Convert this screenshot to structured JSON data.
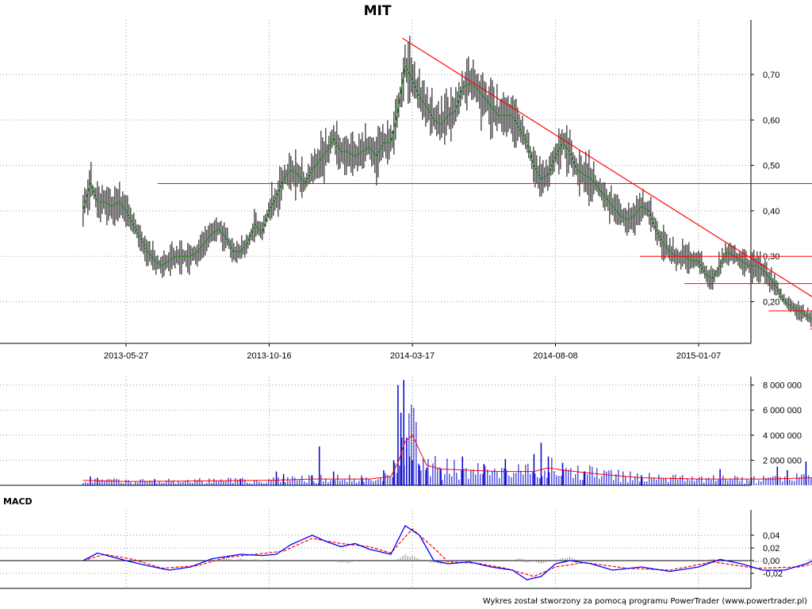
{
  "title": "MIT",
  "footer": "Wykres został stworzony za pomocą programu PowerTrader (www.powertrader.pl)",
  "colors": {
    "price": "#000000",
    "price_ma": "#1a8a1a",
    "trendline": "#ff0000",
    "volume": "#0000cc",
    "volume_ma": "#ff0000",
    "macd": "#0000ff",
    "signal": "#ff0000",
    "histogram": "#8a8a8a",
    "grid": "#9a9a9a"
  },
  "chart_data": [
    {
      "type": "line",
      "panel": "price",
      "title": "MIT",
      "x_tick_labels": [
        "2013-05-27",
        "2013-10-16",
        "2014-03-17",
        "2014-08-08",
        "2015-01-07"
      ],
      "y_tick_labels": [
        "0,70",
        "0,60",
        "0,50",
        "0,40",
        "0,30",
        "0,20"
      ],
      "ylim": [
        0.12,
        0.8
      ],
      "grid": true,
      "series": [
        {
          "values": [
            [
              -0.3,
              0.4
            ],
            [
              -0.25,
              0.46
            ],
            [
              -0.2,
              0.42
            ],
            [
              -0.15,
              0.42
            ],
            [
              -0.1,
              0.41
            ],
            [
              -0.05,
              0.42
            ],
            [
              0.0,
              0.4
            ],
            [
              0.05,
              0.37
            ],
            [
              0.1,
              0.34
            ],
            [
              0.15,
              0.31
            ],
            [
              0.2,
              0.29
            ],
            [
              0.25,
              0.28
            ],
            [
              0.3,
              0.29
            ],
            [
              0.35,
              0.3
            ],
            [
              0.4,
              0.3
            ],
            [
              0.45,
              0.3
            ],
            [
              0.5,
              0.31
            ],
            [
              0.55,
              0.33
            ],
            [
              0.6,
              0.35
            ],
            [
              0.65,
              0.36
            ],
            [
              0.7,
              0.34
            ],
            [
              0.75,
              0.31
            ],
            [
              0.8,
              0.31
            ],
            [
              0.85,
              0.33
            ],
            [
              0.9,
              0.37
            ],
            [
              0.95,
              0.35
            ],
            [
              1.0,
              0.4
            ],
            [
              1.05,
              0.43
            ],
            [
              1.1,
              0.47
            ],
            [
              1.15,
              0.49
            ],
            [
              1.2,
              0.48
            ],
            [
              1.25,
              0.46
            ],
            [
              1.3,
              0.49
            ],
            [
              1.35,
              0.51
            ],
            [
              1.4,
              0.53
            ],
            [
              1.45,
              0.56
            ],
            [
              1.5,
              0.53
            ],
            [
              1.55,
              0.53
            ],
            [
              1.6,
              0.52
            ],
            [
              1.65,
              0.53
            ],
            [
              1.7,
              0.54
            ],
            [
              1.75,
              0.52
            ],
            [
              1.8,
              0.55
            ],
            [
              1.85,
              0.55
            ],
            [
              1.9,
              0.62
            ],
            [
              1.95,
              0.72
            ],
            [
              2.0,
              0.69
            ],
            [
              2.05,
              0.65
            ],
            [
              2.1,
              0.63
            ],
            [
              2.15,
              0.6
            ],
            [
              2.2,
              0.59
            ],
            [
              2.25,
              0.61
            ],
            [
              2.3,
              0.62
            ],
            [
              2.35,
              0.67
            ],
            [
              2.4,
              0.68
            ],
            [
              2.45,
              0.67
            ],
            [
              2.5,
              0.65
            ],
            [
              2.55,
              0.63
            ],
            [
              2.6,
              0.61
            ],
            [
              2.65,
              0.61
            ],
            [
              2.7,
              0.61
            ],
            [
              2.75,
              0.58
            ],
            [
              2.8,
              0.55
            ],
            [
              2.85,
              0.5
            ],
            [
              2.9,
              0.47
            ],
            [
              2.95,
              0.48
            ],
            [
              3.0,
              0.52
            ],
            [
              3.05,
              0.55
            ],
            [
              3.1,
              0.53
            ],
            [
              3.15,
              0.49
            ],
            [
              3.2,
              0.48
            ],
            [
              3.25,
              0.47
            ],
            [
              3.3,
              0.45
            ],
            [
              3.35,
              0.43
            ],
            [
              3.4,
              0.41
            ],
            [
              3.45,
              0.39
            ],
            [
              3.5,
              0.38
            ],
            [
              3.55,
              0.39
            ],
            [
              3.6,
              0.41
            ],
            [
              3.65,
              0.4
            ],
            [
              3.7,
              0.36
            ],
            [
              3.75,
              0.33
            ],
            [
              3.8,
              0.31
            ],
            [
              3.85,
              0.3
            ],
            [
              3.9,
              0.3
            ],
            [
              3.95,
              0.29
            ],
            [
              4.0,
              0.29
            ],
            [
              4.05,
              0.26
            ],
            [
              4.1,
              0.25
            ],
            [
              4.15,
              0.28
            ],
            [
              4.2,
              0.31
            ],
            [
              4.25,
              0.3
            ],
            [
              4.3,
              0.29
            ],
            [
              4.35,
              0.28
            ],
            [
              4.4,
              0.28
            ],
            [
              4.45,
              0.27
            ],
            [
              4.5,
              0.25
            ],
            [
              4.55,
              0.23
            ],
            [
              4.6,
              0.2
            ],
            [
              4.65,
              0.19
            ],
            [
              4.7,
              0.18
            ],
            [
              4.75,
              0.17
            ],
            [
              4.8,
              0.16
            ],
            [
              4.85,
              0.15
            ],
            [
              4.9,
              0.14
            ],
            [
              4.95,
              0.15
            ],
            [
              5.0,
              0.19
            ],
            [
              5.05,
              0.17
            ],
            [
              5.1,
              0.15
            ],
            [
              5.15,
              0.14
            ],
            [
              5.2,
              0.14
            ],
            [
              5.25,
              0.16
            ],
            [
              5.3,
              0.17
            ],
            [
              5.35,
              0.16
            ],
            [
              5.4,
              0.15
            ],
            [
              5.45,
              0.15
            ],
            [
              5.5,
              0.14
            ],
            [
              5.55,
              0.14
            ],
            [
              5.6,
              0.14
            ],
            [
              5.65,
              0.15
            ],
            [
              5.7,
              0.15
            ],
            [
              5.72,
              0.15
            ]
          ]
        }
      ],
      "trendline": {
        "from": [
          1.93,
          0.78
        ],
        "to": [
          5.1,
          0.15
        ]
      },
      "support_lines": [
        {
          "y": 0.46,
          "x_from": 0.22,
          "x_to": 5.75
        },
        {
          "y": 0.3,
          "x_from": 3.59,
          "x_to": 5.75
        },
        {
          "y": 0.24,
          "x_from": 3.9,
          "x_to": 5.75
        },
        {
          "y": 0.18,
          "x_from": 4.49,
          "x_to": 5.75
        },
        {
          "y": 0.14,
          "x_from": 4.78,
          "x_to": 5.75
        }
      ]
    },
    {
      "type": "bar",
      "panel": "volume",
      "y_tick_labels": [
        "8 000 000",
        "6 000 000",
        "4 000 000",
        "2 000 000"
      ],
      "ylim": [
        0,
        8400000
      ],
      "grid": true,
      "spikes": [
        [
          -0.25,
          700000
        ],
        [
          -0.2,
          600000
        ],
        [
          0.2,
          500000
        ],
        [
          0.8,
          500000
        ],
        [
          1.05,
          1100000
        ],
        [
          1.1,
          900000
        ],
        [
          1.3,
          800000
        ],
        [
          1.35,
          3100000
        ],
        [
          1.45,
          1100000
        ],
        [
          1.65,
          600000
        ],
        [
          1.8,
          1200000
        ],
        [
          1.87,
          2000000
        ],
        [
          1.9,
          8000000
        ],
        [
          1.92,
          5800000
        ],
        [
          1.94,
          8400000
        ],
        [
          1.96,
          3800000
        ],
        [
          1.98,
          2300000
        ],
        [
          2.0,
          2000000
        ],
        [
          2.05,
          1600000
        ],
        [
          2.1,
          1400000
        ],
        [
          2.2,
          1300000
        ],
        [
          2.35,
          2300000
        ],
        [
          2.5,
          1700000
        ],
        [
          2.65,
          2100000
        ],
        [
          2.85,
          2500000
        ],
        [
          2.9,
          3400000
        ],
        [
          2.95,
          2300000
        ],
        [
          3.05,
          1800000
        ],
        [
          3.2,
          1100000
        ],
        [
          3.6,
          800000
        ],
        [
          4.15,
          1300000
        ],
        [
          4.55,
          1500000
        ],
        [
          4.62,
          1200000
        ],
        [
          4.75,
          1900000
        ],
        [
          4.8,
          2700000
        ],
        [
          4.85,
          1000000
        ],
        [
          5.0,
          700000
        ],
        [
          5.3,
          600000
        ]
      ],
      "moving_average": [
        [
          -0.3,
          400000
        ],
        [
          0.0,
          300000
        ],
        [
          1.0,
          400000
        ],
        [
          1.3,
          500000
        ],
        [
          1.7,
          500000
        ],
        [
          1.85,
          700000
        ],
        [
          1.9,
          1800000
        ],
        [
          1.95,
          3500000
        ],
        [
          2.0,
          4000000
        ],
        [
          2.05,
          2800000
        ],
        [
          2.1,
          1600000
        ],
        [
          2.2,
          1300000
        ],
        [
          2.4,
          1200000
        ],
        [
          2.6,
          1100000
        ],
        [
          2.85,
          1100000
        ],
        [
          2.95,
          1400000
        ],
        [
          3.05,
          1200000
        ],
        [
          3.3,
          900000
        ],
        [
          3.6,
          600000
        ],
        [
          4.0,
          500000
        ],
        [
          4.5,
          500000
        ],
        [
          4.8,
          600000
        ],
        [
          5.0,
          500000
        ],
        [
          5.72,
          400000
        ]
      ]
    },
    {
      "type": "line",
      "panel": "macd",
      "title": "MACD",
      "y_tick_labels": [
        "0,04",
        "0,02",
        "0,00",
        "-0,02"
      ],
      "ylim": [
        -0.045,
        0.06
      ],
      "grid": true,
      "series": [
        {
          "values": [
            [
              -0.3,
              0.0
            ],
            [
              -0.2,
              0.012
            ],
            [
              -0.1,
              0.006
            ],
            [
              0.0,
              0.0
            ],
            [
              0.15,
              -0.008
            ],
            [
              0.3,
              -0.015
            ],
            [
              0.45,
              -0.01
            ],
            [
              0.6,
              0.003
            ],
            [
              0.8,
              0.01
            ],
            [
              0.95,
              0.008
            ],
            [
              1.05,
              0.01
            ],
            [
              1.15,
              0.025
            ],
            [
              1.3,
              0.04
            ],
            [
              1.4,
              0.03
            ],
            [
              1.5,
              0.022
            ],
            [
              1.6,
              0.027
            ],
            [
              1.7,
              0.018
            ],
            [
              1.85,
              0.01
            ],
            [
              1.95,
              0.055
            ],
            [
              2.05,
              0.04
            ],
            [
              2.15,
              0.0
            ],
            [
              2.25,
              -0.005
            ],
            [
              2.4,
              -0.002
            ],
            [
              2.55,
              -0.01
            ],
            [
              2.7,
              -0.015
            ],
            [
              2.8,
              -0.03
            ],
            [
              2.9,
              -0.025
            ],
            [
              3.0,
              -0.005
            ],
            [
              3.1,
              0.0
            ],
            [
              3.25,
              -0.005
            ],
            [
              3.4,
              -0.015
            ],
            [
              3.6,
              -0.01
            ],
            [
              3.8,
              -0.017
            ],
            [
              4.0,
              -0.01
            ],
            [
              4.15,
              0.002
            ],
            [
              4.3,
              -0.005
            ],
            [
              4.45,
              -0.015
            ],
            [
              4.6,
              -0.015
            ],
            [
              4.75,
              -0.005
            ],
            [
              4.85,
              0.005
            ],
            [
              5.0,
              -0.005
            ],
            [
              5.2,
              -0.002
            ],
            [
              5.4,
              -0.003
            ],
            [
              5.72,
              -0.001
            ]
          ]
        },
        {
          "values": [
            [
              -0.3,
              0.0
            ],
            [
              -0.15,
              0.01
            ],
            [
              0.05,
              0.002
            ],
            [
              0.25,
              -0.012
            ],
            [
              0.5,
              -0.008
            ],
            [
              0.7,
              0.005
            ],
            [
              0.9,
              0.01
            ],
            [
              1.1,
              0.015
            ],
            [
              1.3,
              0.035
            ],
            [
              1.5,
              0.027
            ],
            [
              1.7,
              0.022
            ],
            [
              1.85,
              0.012
            ],
            [
              2.0,
              0.05
            ],
            [
              2.15,
              0.02
            ],
            [
              2.25,
              -0.002
            ],
            [
              2.45,
              -0.004
            ],
            [
              2.65,
              -0.012
            ],
            [
              2.85,
              -0.025
            ],
            [
              3.0,
              -0.01
            ],
            [
              3.2,
              -0.003
            ],
            [
              3.5,
              -0.012
            ],
            [
              3.8,
              -0.015
            ],
            [
              4.1,
              -0.002
            ],
            [
              4.4,
              -0.012
            ],
            [
              4.7,
              -0.01
            ],
            [
              4.9,
              0.0
            ],
            [
              5.2,
              -0.003
            ],
            [
              5.72,
              -0.001
            ]
          ]
        }
      ],
      "histogram": [
        [
          0.6,
          0.002
        ],
        [
          0.7,
          0.004
        ],
        [
          0.8,
          0.003
        ],
        [
          0.9,
          0.002
        ],
        [
          1.5,
          -0.003
        ],
        [
          1.55,
          -0.004
        ],
        [
          1.95,
          0.01
        ],
        [
          2.0,
          0.008
        ],
        [
          2.15,
          -0.004
        ],
        [
          2.2,
          -0.006
        ],
        [
          2.75,
          0.004
        ],
        [
          2.8,
          -0.003
        ],
        [
          2.9,
          -0.005
        ],
        [
          3.05,
          0.004
        ],
        [
          3.1,
          0.006
        ],
        [
          4.1,
          0.003
        ],
        [
          4.4,
          -0.003
        ],
        [
          4.8,
          0.004
        ],
        [
          4.85,
          0.005
        ],
        [
          4.9,
          0.003
        ]
      ]
    }
  ]
}
